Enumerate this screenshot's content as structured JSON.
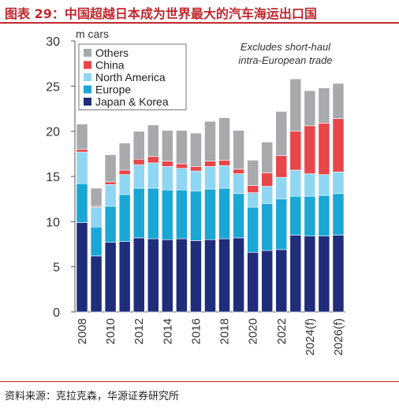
{
  "header": {
    "title": "图表 29：中国超越日本成为世界最大的汽车海运出口国"
  },
  "footer": {
    "source": "资料来源：克拉克森，华源证券研究所"
  },
  "chart_data": {
    "type": "bar",
    "stacked": true,
    "unit_label": "m cars",
    "annotation": [
      "Excludes short-haul",
      "intra-European trade"
    ],
    "x_tick_labels": [
      "2008",
      "2010",
      "2012",
      "2014",
      "2016",
      "2018",
      "2020",
      "2022",
      "2024(f)",
      "2026(f)"
    ],
    "categories": [
      "2008",
      "2009",
      "2010",
      "2011",
      "2012",
      "2013",
      "2014",
      "2015",
      "2016",
      "2017",
      "2018",
      "2019",
      "2020",
      "2021",
      "2022",
      "2023",
      "2024(f)",
      "2025(f)",
      "2026(f)"
    ],
    "ylim": [
      0,
      30
    ],
    "yticks": [
      0,
      5,
      10,
      15,
      20,
      25,
      30
    ],
    "grid": false,
    "legend_position": "top-left",
    "series": [
      {
        "name": "Japan & Korea",
        "color": "#1f2d7b",
        "values": [
          9.9,
          6.2,
          7.7,
          7.8,
          8.2,
          8.1,
          8.0,
          8.1,
          7.9,
          8.0,
          8.1,
          8.2,
          6.6,
          6.8,
          6.9,
          8.5,
          8.4,
          8.4,
          8.5
        ]
      },
      {
        "name": "Europe",
        "color": "#1aa7d6",
        "values": [
          4.3,
          3.2,
          4.0,
          5.2,
          5.5,
          5.6,
          5.5,
          5.4,
          5.5,
          5.6,
          5.6,
          4.9,
          5.0,
          5.2,
          5.6,
          4.3,
          4.4,
          4.5,
          4.6
        ]
      },
      {
        "name": "North America",
        "color": "#8fd6f2",
        "values": [
          3.5,
          2.2,
          2.4,
          2.2,
          2.6,
          2.8,
          2.6,
          2.4,
          2.2,
          2.5,
          2.5,
          2.2,
          1.6,
          1.9,
          2.4,
          2.9,
          2.5,
          2.3,
          2.4
        ]
      },
      {
        "name": "China",
        "color": "#e8464a",
        "values": [
          0.3,
          0.1,
          0.3,
          0.5,
          0.6,
          0.7,
          0.6,
          0.5,
          0.5,
          0.6,
          0.6,
          0.5,
          0.8,
          1.5,
          2.4,
          4.3,
          5.3,
          5.7,
          5.9
        ]
      },
      {
        "name": "Others",
        "color": "#a7a9ac",
        "values": [
          2.8,
          2.0,
          3.0,
          3.0,
          3.1,
          3.5,
          3.4,
          3.7,
          3.7,
          4.4,
          4.7,
          4.3,
          2.8,
          3.4,
          4.9,
          5.8,
          3.9,
          3.9,
          3.9
        ]
      }
    ]
  }
}
